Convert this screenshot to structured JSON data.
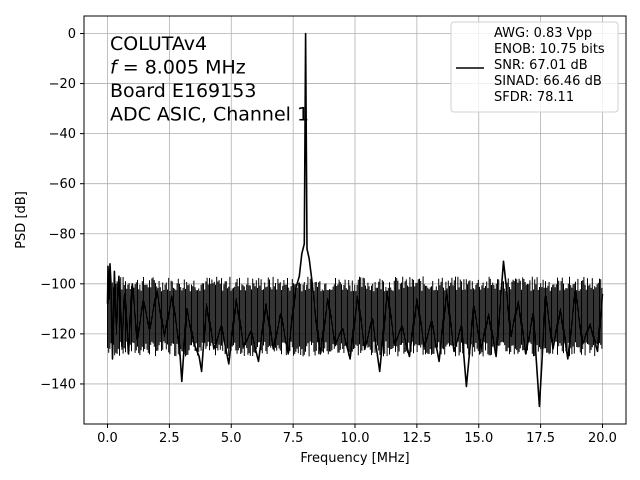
{
  "chart_data": {
    "type": "line",
    "xlabel": "Frequency [MHz]",
    "ylabel": "PSD [dB]",
    "xlim": [
      -0.95,
      20.95
    ],
    "ylim": [
      -156,
      7
    ],
    "xticks": [
      0.0,
      2.5,
      5.0,
      7.5,
      10.0,
      12.5,
      15.0,
      17.5,
      20.0
    ],
    "xtick_labels": [
      "0.0",
      "2.5",
      "5.0",
      "7.5",
      "10.0",
      "12.5",
      "15.0",
      "17.5",
      "20.0"
    ],
    "yticks": [
      0,
      -20,
      -40,
      -60,
      -80,
      -100,
      -120,
      -140
    ],
    "ytick_labels": [
      "0",
      "−20",
      "−40",
      "−60",
      "−80",
      "−100",
      "−120",
      "−140"
    ],
    "grid": true,
    "annotation_lines": [
      "COLUTAv4",
      "= 8.005 MHz",
      "Board E169153",
      "ADC ASIC, Channel  1"
    ],
    "annotation_symbol": "f",
    "legend": {
      "placement": "top-right",
      "lines": [
        "AWG: 0.83 Vpp",
        "ENOB: 10.75 bits",
        "SNR: 67.01 dB",
        "SINAD: 66.46 dB",
        "SFDR: 78.11"
      ]
    },
    "series": [
      {
        "color": "#000000",
        "noise_floor_db": [
          -100,
          -126
        ],
        "x": [
          0,
          0.02,
          0.06,
          0.1,
          0.14,
          0.2,
          0.28,
          0.36,
          0.46,
          0.58,
          0.7,
          0.85,
          1.0,
          1.2,
          1.45,
          1.7,
          2.0,
          2.3,
          2.6,
          2.9,
          3.0,
          3.2,
          3.5,
          3.7,
          3.8,
          4.0,
          4.3,
          4.6,
          4.9,
          5.2,
          5.5,
          5.8,
          6.1,
          6.4,
          6.7,
          7.0,
          7.3,
          7.6,
          7.75,
          7.85,
          7.95,
          8.005,
          8.06,
          8.15,
          8.25,
          8.4,
          8.6,
          8.9,
          9.2,
          9.5,
          9.8,
          10.1,
          10.4,
          10.7,
          11.0,
          11.3,
          11.6,
          11.9,
          12.2,
          12.5,
          12.8,
          13.1,
          13.4,
          13.7,
          14.0,
          14.3,
          14.5,
          14.8,
          15.1,
          15.4,
          15.7,
          16.0,
          16.1,
          16.3,
          16.6,
          16.9,
          17.2,
          17.45,
          17.7,
          18.0,
          18.3,
          18.6,
          18.9,
          19.2,
          19.5,
          19.8,
          20.0
        ],
        "y": [
          -108,
          -93,
          -106,
          -92,
          -100,
          -130,
          -95,
          -120,
          -97,
          -125,
          -104,
          -128,
          -100,
          -122,
          -107,
          -118,
          -103,
          -121,
          -105,
          -124,
          -139,
          -110,
          -124,
          -129,
          -135,
          -108,
          -126,
          -117,
          -132,
          -106,
          -125,
          -119,
          -131,
          -108,
          -126,
          -112,
          -128,
          -102,
          -97,
          -88,
          -84,
          0,
          -86,
          -90,
          -98,
          -112,
          -128,
          -106,
          -124,
          -118,
          -130,
          -105,
          -126,
          -114,
          -135,
          -103,
          -124,
          -117,
          -129,
          -106,
          -125,
          -115,
          -131,
          -103,
          -127,
          -117,
          -141,
          -109,
          -126,
          -112,
          -129,
          -91,
          -100,
          -121,
          -107,
          -128,
          -112,
          -149,
          -105,
          -126,
          -110,
          -130,
          -103,
          -124,
          -116,
          -127,
          -104
        ]
      }
    ]
  }
}
